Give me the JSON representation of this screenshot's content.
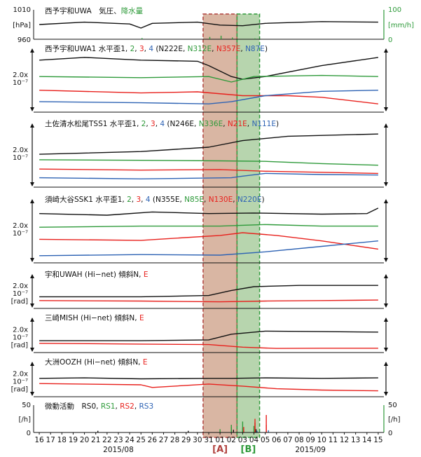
{
  "colors": {
    "black": "#111111",
    "red": "#e8211d",
    "green": "#2e9a3a",
    "blue": "#2e63b4",
    "bandA_fill": "#b97a57",
    "bandA_stroke": "#b0413e",
    "bandB_fill": "#7cb36b",
    "bandB_stroke": "#2e9a3a"
  },
  "chart_data": {
    "type": "line",
    "x_start": "2015-08-16",
    "x_end": "2015-09-15",
    "x_tick_labels": [
      "16",
      "17",
      "18",
      "19",
      "20",
      "21",
      "22",
      "23",
      "24",
      "25",
      "26",
      "27",
      "28",
      "29",
      "30",
      "31",
      "01",
      "02",
      "03",
      "04",
      "05",
      "06",
      "07",
      "08",
      "09",
      "10",
      "11",
      "12",
      "13",
      "14",
      "15"
    ],
    "month_labels": [
      {
        "date": "2015-08-23",
        "text": "2015/08"
      },
      {
        "date": "2015-09-09",
        "text": "2015/09"
      }
    ],
    "bands": [
      {
        "label": "[A]",
        "start": "2015-08-31",
        "end": "2015-09-03",
        "color": "bandA"
      },
      {
        "label": "[B]",
        "start": "2015-09-03",
        "end": "2015-09-05",
        "color": "bandB"
      }
    ],
    "panels": [
      {
        "id": "weather",
        "title_parts": [
          {
            "text": "西予宇和UWA　気圧、",
            "color": "black"
          },
          {
            "text": "降水量",
            "color": "green"
          }
        ],
        "left_axis": {
          "unit": "[hPa]",
          "ticks": [
            "1010",
            "960"
          ]
        },
        "right_axis": {
          "unit": "[mm/h]",
          "ticks": [
            "100",
            "0"
          ]
        },
        "series": [
          {
            "color": "black",
            "x": [
              "2015-08-16",
              "2015-08-20",
              "2015-08-24",
              "2015-08-25",
              "2015-08-26",
              "2015-08-30",
              "2015-09-01",
              "2015-09-03",
              "2015-09-05",
              "2015-09-10",
              "2015-09-15"
            ],
            "y": [
              985,
              989,
              986,
              979,
              987,
              989,
              984,
              983,
              987,
              990,
              989
            ]
          },
          {
            "color": "green",
            "type": "bar",
            "x": [
              "2015-08-25",
              "2015-08-31",
              "2015-09-01",
              "2015-09-02",
              "2015-09-04"
            ],
            "y": [
              4,
              8,
              12,
              6,
              3
            ]
          }
        ]
      },
      {
        "id": "uwa1",
        "title_parts": [
          {
            "text": "西予宇和UWA1 水平歪1, ",
            "color": "black"
          },
          {
            "text": "2",
            "color": "green"
          },
          {
            "text": ", ",
            "color": "black"
          },
          {
            "text": "3",
            "color": "red"
          },
          {
            "text": ", ",
            "color": "black"
          },
          {
            "text": "4",
            "color": "blue"
          },
          {
            "text": " (N222E, ",
            "color": "black"
          },
          {
            "text": "N312E",
            "color": "green"
          },
          {
            "text": ", ",
            "color": "black"
          },
          {
            "text": "N357E",
            "color": "red"
          },
          {
            "text": ", ",
            "color": "black"
          },
          {
            "text": "N87E",
            "color": "blue"
          },
          {
            "text": ")",
            "color": "black"
          }
        ],
        "scale_label": [
          "2.0x",
          "10⁻⁷"
        ],
        "series": [
          {
            "color": "black",
            "x": [
              "2015-08-16",
              "2015-08-20",
              "2015-08-25",
              "2015-08-30",
              "2015-08-31",
              "2015-09-02",
              "2015-09-03",
              "2015-09-05",
              "2015-09-10",
              "2015-09-15"
            ],
            "y": [
              0.9,
              0.95,
              0.9,
              0.88,
              0.8,
              0.6,
              0.55,
              0.6,
              0.8,
              0.95
            ]
          },
          {
            "color": "green",
            "x": [
              "2015-08-16",
              "2015-08-25",
              "2015-08-31",
              "2015-09-02",
              "2015-09-04",
              "2015-09-10",
              "2015-09-15"
            ],
            "y": [
              0.6,
              0.58,
              0.6,
              0.5,
              0.6,
              0.62,
              0.6
            ]
          },
          {
            "color": "red",
            "x": [
              "2015-08-16",
              "2015-08-25",
              "2015-08-30",
              "2015-09-03",
              "2015-09-07",
              "2015-09-10",
              "2015-09-15"
            ],
            "y": [
              0.35,
              0.3,
              0.32,
              0.25,
              0.25,
              0.22,
              0.1
            ]
          },
          {
            "color": "blue",
            "x": [
              "2015-08-16",
              "2015-08-25",
              "2015-08-31",
              "2015-09-02",
              "2015-09-05",
              "2015-09-10",
              "2015-09-15"
            ],
            "y": [
              0.14,
              0.12,
              0.1,
              0.14,
              0.25,
              0.33,
              0.35
            ]
          }
        ]
      },
      {
        "id": "tss1",
        "title_parts": [
          {
            "text": "土佐清水松尾TSS1 水平歪1, ",
            "color": "black"
          },
          {
            "text": "2",
            "color": "green"
          },
          {
            "text": ", ",
            "color": "black"
          },
          {
            "text": "3",
            "color": "red"
          },
          {
            "text": ", ",
            "color": "black"
          },
          {
            "text": "4",
            "color": "blue"
          },
          {
            "text": " (N246E, ",
            "color": "black"
          },
          {
            "text": "N336E",
            "color": "green"
          },
          {
            "text": ", ",
            "color": "black"
          },
          {
            "text": "N21E",
            "color": "red"
          },
          {
            "text": ", ",
            "color": "black"
          },
          {
            "text": "N111E",
            "color": "blue"
          },
          {
            "text": ")",
            "color": "black"
          }
        ],
        "scale_label": [
          "2.0x",
          "10⁻⁷"
        ],
        "series": [
          {
            "color": "black",
            "x": [
              "2015-08-16",
              "2015-08-25",
              "2015-08-31",
              "2015-09-03",
              "2015-09-07",
              "2015-09-15"
            ],
            "y": [
              0.55,
              0.6,
              0.68,
              0.8,
              0.88,
              0.92
            ]
          },
          {
            "color": "green",
            "x": [
              "2015-08-16",
              "2015-08-25",
              "2015-09-01",
              "2015-09-05",
              "2015-09-10",
              "2015-09-15"
            ],
            "y": [
              0.45,
              0.44,
              0.43,
              0.42,
              0.38,
              0.35
            ]
          },
          {
            "color": "red",
            "x": [
              "2015-08-16",
              "2015-08-25",
              "2015-09-01",
              "2015-09-05",
              "2015-09-10",
              "2015-09-15"
            ],
            "y": [
              0.28,
              0.26,
              0.27,
              0.24,
              0.22,
              0.2
            ]
          },
          {
            "color": "blue",
            "x": [
              "2015-08-16",
              "2015-08-25",
              "2015-09-02",
              "2015-09-03",
              "2015-09-05",
              "2015-09-10",
              "2015-09-15"
            ],
            "y": [
              0.12,
              0.1,
              0.12,
              0.15,
              0.2,
              0.18,
              0.17
            ]
          }
        ]
      },
      {
        "id": "ssk1",
        "title_parts": [
          {
            "text": "須崎大谷SSK1 水平歪1, ",
            "color": "black"
          },
          {
            "text": "2",
            "color": "green"
          },
          {
            "text": ", ",
            "color": "black"
          },
          {
            "text": "3",
            "color": "red"
          },
          {
            "text": ", ",
            "color": "black"
          },
          {
            "text": "4",
            "color": "blue"
          },
          {
            "text": " (N355E, ",
            "color": "black"
          },
          {
            "text": "N85E",
            "color": "green"
          },
          {
            "text": ", ",
            "color": "black"
          },
          {
            "text": "N130E",
            "color": "red"
          },
          {
            "text": ", ",
            "color": "black"
          },
          {
            "text": "N220E",
            "color": "blue"
          },
          {
            "text": ")",
            "color": "black"
          }
        ],
        "scale_label": [
          "2.0x",
          "10⁻⁷"
        ],
        "series": [
          {
            "color": "black",
            "x": [
              "2015-08-16",
              "2015-08-22",
              "2015-08-26",
              "2015-08-31",
              "2015-09-04",
              "2015-09-10",
              "2015-09-14",
              "2015-09-15"
            ],
            "y": [
              0.85,
              0.82,
              0.88,
              0.85,
              0.86,
              0.84,
              0.85,
              0.95
            ]
          },
          {
            "color": "green",
            "x": [
              "2015-08-16",
              "2015-08-25",
              "2015-09-01",
              "2015-09-05",
              "2015-09-10",
              "2015-09-15"
            ],
            "y": [
              0.6,
              0.62,
              0.62,
              0.65,
              0.62,
              0.62
            ]
          },
          {
            "color": "red",
            "x": [
              "2015-08-16",
              "2015-08-25",
              "2015-09-01",
              "2015-09-03",
              "2015-09-06",
              "2015-09-10",
              "2015-09-15"
            ],
            "y": [
              0.38,
              0.36,
              0.45,
              0.5,
              0.45,
              0.35,
              0.2
            ]
          },
          {
            "color": "blue",
            "x": [
              "2015-08-16",
              "2015-08-25",
              "2015-09-01",
              "2015-09-05",
              "2015-09-10",
              "2015-09-15"
            ],
            "y": [
              0.08,
              0.1,
              0.09,
              0.15,
              0.25,
              0.35
            ]
          }
        ]
      },
      {
        "id": "uwah",
        "title_parts": [
          {
            "text": "宇和UWAH (Hi−net) 傾斜N, ",
            "color": "black"
          },
          {
            "text": "E",
            "color": "red"
          }
        ],
        "scale_label": [
          "2.0x",
          "10⁻⁷",
          "[rad]"
        ],
        "series": [
          {
            "color": "black",
            "x": [
              "2015-08-16",
              "2015-08-25",
              "2015-08-31",
              "2015-09-02",
              "2015-09-04",
              "2015-09-08",
              "2015-09-15"
            ],
            "y": [
              0.35,
              0.35,
              0.4,
              0.6,
              0.75,
              0.8,
              0.8
            ]
          },
          {
            "color": "red",
            "x": [
              "2015-08-16",
              "2015-08-25",
              "2015-09-01",
              "2015-09-05",
              "2015-09-10",
              "2015-09-15"
            ],
            "y": [
              0.2,
              0.18,
              0.15,
              0.18,
              0.2,
              0.22
            ]
          }
        ]
      },
      {
        "id": "mish",
        "title_parts": [
          {
            "text": "三崎MISH (Hi−net) 傾斜N, ",
            "color": "black"
          },
          {
            "text": "E",
            "color": "red"
          }
        ],
        "scale_label": [
          "2.0x",
          "10⁻⁷",
          "[rad]"
        ],
        "series": [
          {
            "color": "black",
            "x": [
              "2015-08-16",
              "2015-08-25",
              "2015-08-31",
              "2015-09-02",
              "2015-09-05",
              "2015-09-10",
              "2015-09-15"
            ],
            "y": [
              0.35,
              0.35,
              0.38,
              0.6,
              0.72,
              0.7,
              0.68
            ]
          },
          {
            "color": "red",
            "x": [
              "2015-08-16",
              "2015-08-25",
              "2015-08-31",
              "2015-09-03",
              "2015-09-06",
              "2015-09-10",
              "2015-09-15"
            ],
            "y": [
              0.25,
              0.22,
              0.2,
              0.1,
              0.05,
              0.06,
              0.06
            ]
          }
        ]
      },
      {
        "id": "oozh",
        "title_parts": [
          {
            "text": "大洲OOZH (Hi−net) 傾斜N, ",
            "color": "black"
          },
          {
            "text": "E",
            "color": "red"
          }
        ],
        "scale_label": [
          "2.0x",
          "10⁻⁷",
          "[rad]"
        ],
        "series": [
          {
            "color": "black",
            "x": [
              "2015-08-16",
              "2015-08-20",
              "2015-08-25",
              "2015-08-31",
              "2015-09-02",
              "2015-09-05",
              "2015-09-10",
              "2015-09-15"
            ],
            "y": [
              0.6,
              0.62,
              0.58,
              0.6,
              0.6,
              0.62,
              0.6,
              0.62
            ]
          },
          {
            "color": "red",
            "x": [
              "2015-08-16",
              "2015-08-25",
              "2015-08-26",
              "2015-08-31",
              "2015-09-03",
              "2015-09-06",
              "2015-09-10",
              "2015-09-15"
            ],
            "y": [
              0.4,
              0.35,
              0.25,
              0.38,
              0.3,
              0.2,
              0.15,
              0.12
            ]
          }
        ]
      },
      {
        "id": "tremor",
        "title_parts": [
          {
            "text": "微動活動　RS0, ",
            "color": "black"
          },
          {
            "text": "RS1",
            "color": "green"
          },
          {
            "text": ", ",
            "color": "black"
          },
          {
            "text": "RS2",
            "color": "red"
          },
          {
            "text": ", ",
            "color": "black"
          },
          {
            "text": "RS3",
            "color": "blue"
          }
        ],
        "left_axis": {
          "unit": "[/h]",
          "ticks": [
            "50",
            "0"
          ]
        },
        "right_axis": {
          "unit": "[/h]",
          "ticks": [
            "50",
            "0"
          ]
        },
        "series": [
          {
            "color": "green",
            "type": "bar",
            "x": [
              "2015-09-01",
              "2015-09-02",
              "2015-09-02",
              "2015-09-03",
              "2015-09-03",
              "2015-09-04"
            ],
            "y": [
              6,
              10,
              14,
              8,
              20,
              12
            ]
          },
          {
            "color": "red",
            "type": "bar",
            "x": [
              "2015-09-03",
              "2015-09-04",
              "2015-09-04",
              "2015-09-05",
              "2015-09-05"
            ],
            "y": [
              10,
              18,
              25,
              32,
              14
            ]
          },
          {
            "color": "black",
            "type": "bar",
            "x": [
              "2015-08-21",
              "2015-08-29",
              "2015-09-02",
              "2015-09-04"
            ],
            "y": [
              3,
              3,
              5,
              6
            ]
          },
          {
            "color": "blue",
            "type": "bar",
            "x": [
              "2015-09-04",
              "2015-09-05"
            ],
            "y": [
              3,
              4
            ]
          }
        ]
      }
    ]
  }
}
